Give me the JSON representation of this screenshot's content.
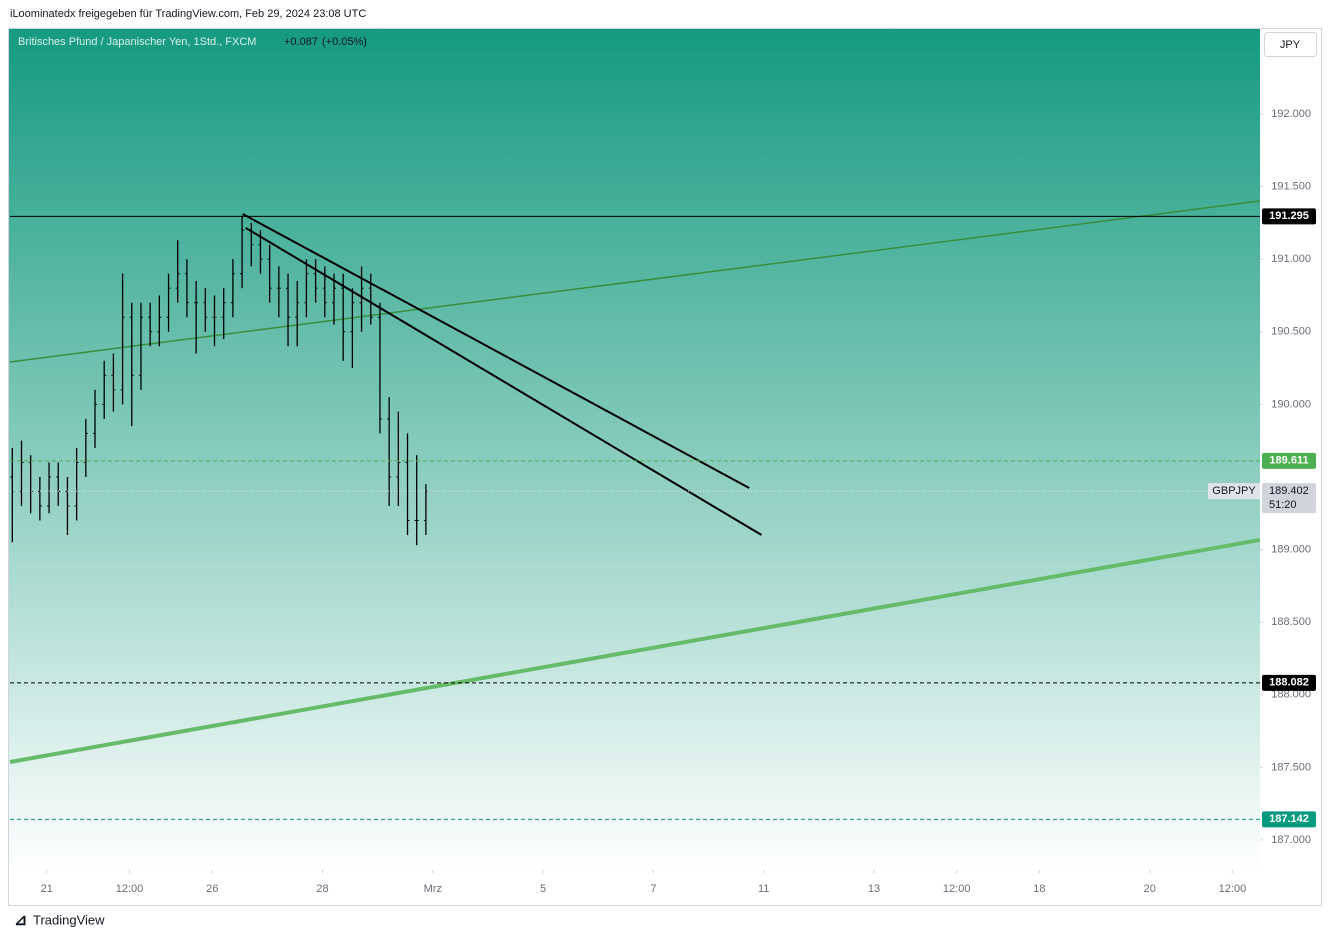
{
  "header": {
    "share_text": "iLoominatedx freigegeben für TradingView.com, Feb 29, 2024 23:08 UTC",
    "symbol_title": "Britisches Pfund / Japanischer Yen, 1Std., FXCM",
    "change": "+0.087",
    "change_pct": "(+0.05%)",
    "currency_button": "JPY",
    "symbol_tag": "GBPJPY",
    "countdown": "51:20",
    "brand": "TradingView"
  },
  "chart_data": {
    "type": "ohlc",
    "color": "#000000",
    "x": [
      1,
      5,
      9,
      13,
      17,
      21,
      25,
      29,
      33,
      37,
      41,
      45,
      49,
      53,
      57,
      61,
      65,
      69,
      73,
      77,
      81,
      85,
      89,
      93,
      97,
      101,
      105,
      109,
      113,
      117,
      121,
      125,
      129,
      133,
      137,
      141,
      145,
      149,
      153,
      157,
      161,
      165,
      169,
      173,
      177,
      181
    ],
    "open": [
      189.5,
      189.4,
      189.6,
      189.4,
      189.3,
      189.5,
      189.4,
      189.3,
      189.6,
      189.8,
      190.0,
      190.2,
      190.1,
      190.6,
      190.2,
      190.6,
      190.5,
      190.6,
      190.8,
      190.9,
      190.7,
      190.7,
      190.6,
      190.6,
      190.7,
      190.9,
      191.2,
      191.1,
      191.0,
      190.8,
      190.8,
      190.6,
      190.7,
      190.9,
      190.8,
      190.7,
      190.8,
      190.5,
      190.7,
      190.8,
      190.6,
      189.9,
      189.5,
      189.6,
      189.2,
      189.2
    ],
    "high": [
      189.7,
      189.75,
      189.65,
      189.5,
      189.6,
      189.6,
      189.5,
      189.7,
      189.9,
      190.1,
      190.3,
      190.35,
      190.9,
      190.7,
      190.7,
      190.7,
      190.75,
      190.9,
      191.13,
      191.0,
      190.85,
      190.8,
      190.75,
      190.8,
      191.0,
      191.3,
      191.25,
      191.2,
      191.1,
      190.95,
      190.9,
      190.85,
      191.0,
      191.0,
      190.95,
      190.9,
      190.9,
      190.8,
      190.95,
      190.9,
      190.7,
      190.05,
      189.95,
      189.8,
      189.65,
      189.45
    ],
    "low": [
      189.05,
      189.3,
      189.25,
      189.2,
      189.25,
      189.3,
      189.1,
      189.2,
      189.5,
      189.7,
      189.9,
      189.95,
      190.0,
      189.85,
      190.1,
      190.4,
      190.4,
      190.5,
      190.7,
      190.6,
      190.35,
      190.5,
      190.4,
      190.45,
      190.6,
      190.8,
      190.95,
      190.9,
      190.7,
      190.6,
      190.4,
      190.4,
      190.6,
      190.7,
      190.6,
      190.55,
      190.3,
      190.25,
      190.5,
      190.55,
      189.8,
      189.3,
      189.3,
      189.1,
      189.03,
      189.1
    ],
    "close": [
      189.4,
      189.6,
      189.4,
      189.3,
      189.5,
      189.4,
      189.3,
      189.6,
      189.8,
      190.0,
      190.2,
      190.1,
      190.6,
      190.2,
      190.6,
      190.5,
      190.6,
      190.8,
      190.9,
      190.7,
      190.7,
      190.6,
      190.6,
      190.7,
      190.9,
      191.2,
      191.1,
      191.0,
      190.8,
      190.8,
      190.6,
      190.7,
      190.9,
      190.8,
      190.7,
      190.8,
      190.5,
      190.7,
      190.8,
      190.6,
      189.9,
      189.5,
      189.6,
      189.2,
      189.2,
      189.4
    ],
    "last_price": 189.402,
    "xlim": [
      0,
      544
    ],
    "ylim": [
      186.793,
      192.592
    ],
    "xticks": [
      {
        "value": 16,
        "label": "21"
      },
      {
        "value": 52,
        "label": "12:00"
      },
      {
        "value": 88,
        "label": "26"
      },
      {
        "value": 136,
        "label": "28"
      },
      {
        "value": 184,
        "label": "Mrz"
      },
      {
        "value": 232,
        "label": "5"
      },
      {
        "value": 280,
        "label": "7"
      },
      {
        "value": 328,
        "label": "11"
      },
      {
        "value": 376,
        "label": "13"
      },
      {
        "value": 412,
        "label": "12:00"
      },
      {
        "value": 448,
        "label": "18"
      },
      {
        "value": 496,
        "label": "20"
      },
      {
        "value": 532,
        "label": "12:00"
      }
    ],
    "yticks": [
      {
        "value": 192,
        "label": "192.000"
      },
      {
        "value": 191.5,
        "label": "191.500"
      },
      {
        "value": 191,
        "label": "191.000"
      },
      {
        "value": 190.5,
        "label": "190.500"
      },
      {
        "value": 190,
        "label": "190.000"
      },
      {
        "value": 189,
        "label": "189.000"
      },
      {
        "value": 188.5,
        "label": "188.500"
      },
      {
        "value": 188,
        "label": "188.000"
      },
      {
        "value": 187.5,
        "label": "187.500"
      },
      {
        "value": 187,
        "label": "187.000"
      }
    ],
    "hlines": [
      {
        "value": 191.295,
        "color": "#000000",
        "dash": false
      },
      {
        "value": 189.611,
        "color": "#4caf50",
        "dash": true
      },
      {
        "value": 188.082,
        "color": "#000000",
        "dash": true
      },
      {
        "value": 187.142,
        "color": "#089981",
        "dash": true
      }
    ],
    "trendlines": [
      {
        "x": [
          0,
          544
        ],
        "y": [
          190.292,
          191.401
        ],
        "color": "#388e3c",
        "width": 1.5
      },
      {
        "x": [
          0,
          544
        ],
        "y": [
          187.537,
          189.066
        ],
        "color": "#66bb6a",
        "width": 4
      },
      {
        "x": [
          101.3,
          321.7
        ],
        "y": [
          191.311,
          189.424
        ],
        "color": "#000000",
        "width": 2
      },
      {
        "x": [
          102.6,
          327
        ],
        "y": [
          191.215,
          189.101
        ],
        "color": "#000000",
        "width": 2
      }
    ]
  }
}
